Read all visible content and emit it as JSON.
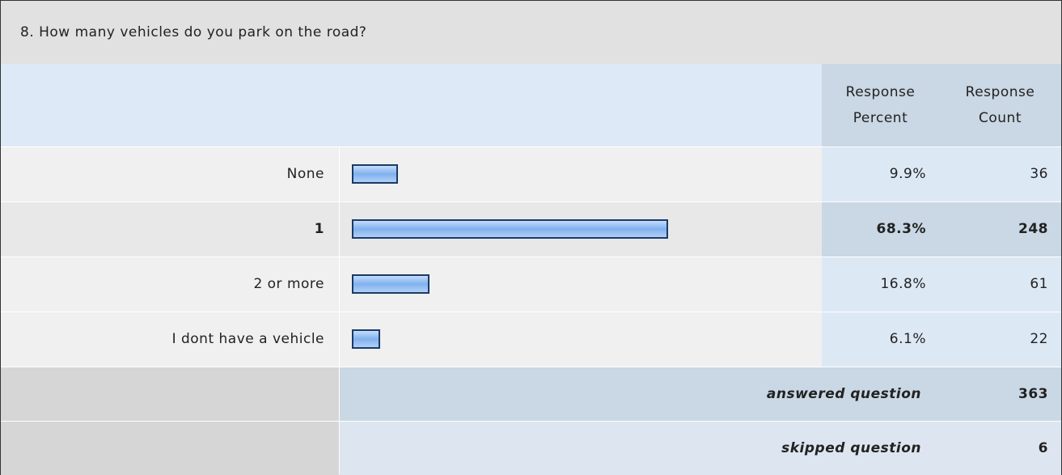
{
  "chart_data": {
    "type": "bar",
    "title": "8. How many vehicles do you park on the road?",
    "column_headers": [
      "Response Percent",
      "Response Count"
    ],
    "categories": [
      "None",
      "1",
      "2 or more",
      "I dont have a vehicle"
    ],
    "values": [
      9.9,
      68.3,
      16.8,
      6.1
    ],
    "value_labels": [
      "9.9%",
      "68.3%",
      "16.8%",
      "6.1%"
    ],
    "counts": [
      36,
      248,
      61,
      22
    ],
    "color": "#7fb2ee",
    "footer": [
      {
        "label": "answered question",
        "value": 363
      },
      {
        "label": "skipped question",
        "value": 6
      }
    ]
  }
}
